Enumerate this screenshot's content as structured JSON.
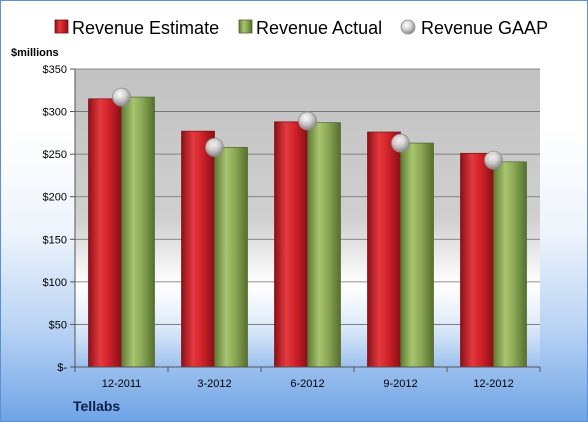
{
  "company": "Tellabs",
  "colors": {
    "estimate": "#d4202a",
    "actual": "#8fae5a",
    "gaap": "#b8b8b8"
  },
  "chart_data": {
    "type": "bar",
    "title": "",
    "xlabel": "",
    "ylabel": "$millions",
    "categories": [
      "12-2011",
      "3-2012",
      "6-2012",
      "9-2012",
      "12-2012"
    ],
    "series": [
      {
        "name": "Revenue Estimate",
        "kind": "bar",
        "values": [
          315,
          277,
          288,
          276,
          251
        ]
      },
      {
        "name": "Revenue Actual",
        "kind": "bar",
        "values": [
          317,
          258,
          287,
          263,
          241
        ]
      },
      {
        "name": "Revenue GAAP",
        "kind": "marker",
        "values": [
          317,
          258,
          289,
          263,
          243
        ]
      }
    ],
    "ylim": [
      0,
      350
    ],
    "yticks": [
      0,
      50,
      100,
      150,
      200,
      250,
      300,
      350
    ],
    "ytick_labels": [
      "$-",
      "$50",
      "$100",
      "$150",
      "$200",
      "$250",
      "$300",
      "$350"
    ],
    "grid": true,
    "legend_position": "top"
  }
}
